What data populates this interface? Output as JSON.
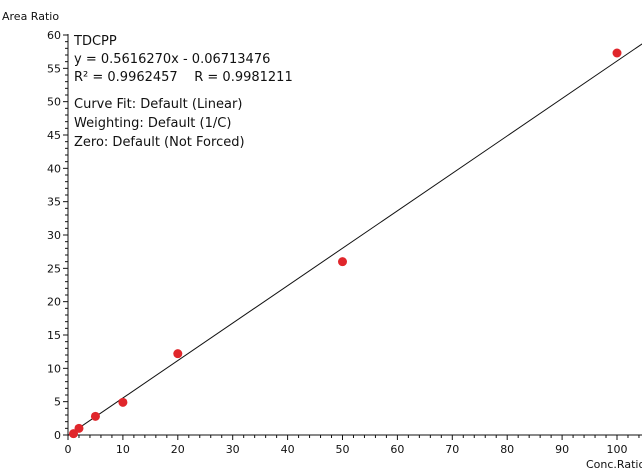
{
  "chart_data": {
    "type": "scatter",
    "xlabel": "Conc.Ratio",
    "ylabel": "Area Ratio",
    "xlim": [
      0,
      105
    ],
    "ylim": [
      0,
      60
    ],
    "x_ticks": [
      0,
      10,
      20,
      30,
      40,
      50,
      60,
      70,
      80,
      90,
      100
    ],
    "y_ticks": [
      0,
      5,
      10,
      15,
      20,
      25,
      30,
      35,
      40,
      45,
      50,
      55,
      60
    ],
    "x_minor_step": 2,
    "y_minor_step": 1,
    "grid": false,
    "point_color": "#e0262b",
    "line_color": "#111111",
    "points": [
      {
        "x": 1,
        "y": 0.2
      },
      {
        "x": 2,
        "y": 1.0
      },
      {
        "x": 5,
        "y": 2.8
      },
      {
        "x": 10,
        "y": 4.9
      },
      {
        "x": 20,
        "y": 12.2
      },
      {
        "x": 50,
        "y": 26.0
      },
      {
        "x": 100,
        "y": 57.3
      }
    ],
    "fit": {
      "slope": 0.561627,
      "intercept": -0.06713476
    },
    "annotations": [
      "TDCPP",
      "y = 0.5616270x - 0.06713476",
      "R² = 0.9962457    R = 0.9981211",
      "Curve Fit: Default (Linear)",
      "Weighting: Default (1/C)",
      "Zero: Default (Not Forced)"
    ]
  }
}
